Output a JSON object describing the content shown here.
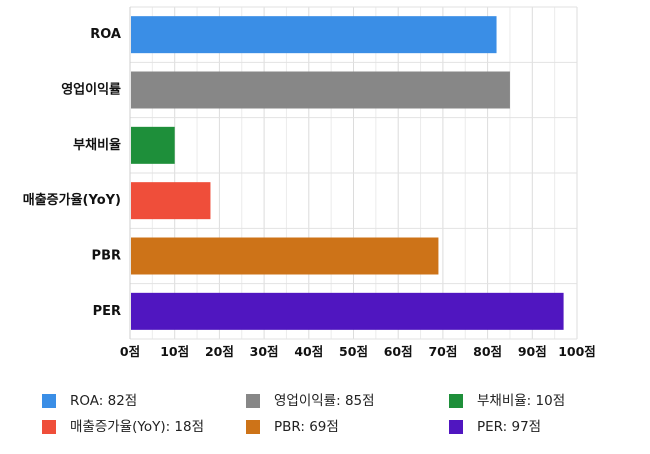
{
  "chart_data": {
    "type": "bar",
    "orientation": "horizontal",
    "categories": [
      "ROA",
      "영업이익률",
      "부채비율",
      "매출증가율(YoY)",
      "PBR",
      "PER"
    ],
    "values": [
      82,
      85,
      10,
      18,
      69,
      97
    ],
    "colors": [
      "#3a8ee6",
      "#878787",
      "#1e8f3a",
      "#ef4e3a",
      "#cd7318",
      "#5016c0"
    ],
    "xlim": [
      0,
      100
    ],
    "x_ticks": [
      0,
      10,
      20,
      30,
      40,
      50,
      60,
      70,
      80,
      90,
      100
    ],
    "x_tick_labels": [
      "0점",
      "10점",
      "20점",
      "30점",
      "40점",
      "50점",
      "60점",
      "70점",
      "80점",
      "90점",
      "100점"
    ],
    "grid": true,
    "legend": {
      "placement": "bottom",
      "entries": [
        "ROA: 82점",
        "영업이익률: 85점",
        "부채비율: 10점",
        "매출증가율(YoY): 18점",
        "PBR: 69점",
        "PER: 97점"
      ]
    }
  }
}
